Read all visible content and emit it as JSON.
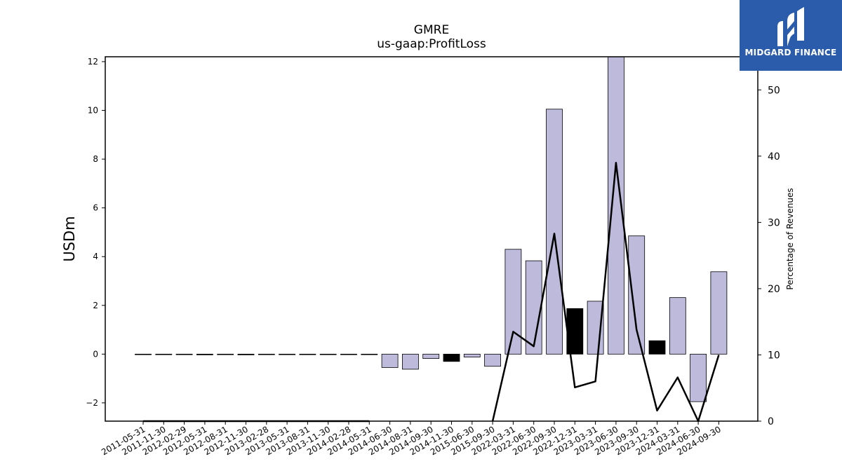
{
  "chart_data": {
    "type": "bar",
    "title": "GMRE",
    "subtitle": "us-gaap:ProfitLoss",
    "ylabel": "USDm",
    "y2label": "Percentage of Revenues",
    "ylim": [
      -2.75,
      12.2
    ],
    "y2lim": [
      0,
      55
    ],
    "yticks": [
      -2,
      0,
      2,
      4,
      6,
      8,
      10,
      12
    ],
    "y2ticks": [
      0,
      10,
      20,
      30,
      40,
      50
    ],
    "categories": [
      "2011-05-31",
      "2011-11-30",
      "2012-02-29",
      "2012-05-31",
      "2012-08-31",
      "2012-11-30",
      "2013-02-28",
      "2013-05-31",
      "2013-08-31",
      "2013-11-30",
      "2014-02-28",
      "2014-05-31",
      "2014-06-30",
      "2014-08-31",
      "2014-09-30",
      "2014-11-30",
      "2015-06-30",
      "2015-09-30",
      "2022-03-31",
      "2022-06-30",
      "2022-09-30",
      "2022-12-31",
      "2023-03-31",
      "2023-06-30",
      "2023-09-30",
      "2023-12-31",
      "2024-03-31",
      "2024-06-30",
      "2024-09-30"
    ],
    "bar_series": {
      "name": "",
      "values": [
        0,
        0,
        0,
        -0.03,
        0,
        -0.03,
        0,
        0,
        0,
        0,
        0,
        0,
        -0.55,
        -0.62,
        -0.18,
        -0.3,
        -0.12,
        -0.5,
        4.3,
        3.83,
        10.05,
        1.87,
        2.17,
        12.2,
        4.85,
        0.55,
        2.32,
        -1.95,
        3.38
      ],
      "highlight_black": [
        false,
        false,
        false,
        true,
        false,
        true,
        false,
        false,
        false,
        false,
        false,
        false,
        false,
        false,
        false,
        true,
        false,
        false,
        false,
        false,
        false,
        true,
        false,
        false,
        false,
        true,
        false,
        false,
        false
      ]
    },
    "line_series": {
      "name": "",
      "values": [
        0,
        0,
        0,
        0,
        0,
        0,
        0,
        0,
        0,
        0,
        0,
        0,
        null,
        null,
        null,
        null,
        null,
        0,
        13.5,
        11.3,
        28.3,
        5.1,
        6.0,
        39.0,
        13.8,
        1.6,
        6.6,
        -1.5,
        10.0
      ]
    },
    "colors": {
      "bar": "#bdbadb",
      "bar_highlight": "#000000",
      "line": "#000000"
    }
  },
  "logo": {
    "text": "MIDGARD FINANCE",
    "color": "#2b5bab"
  }
}
